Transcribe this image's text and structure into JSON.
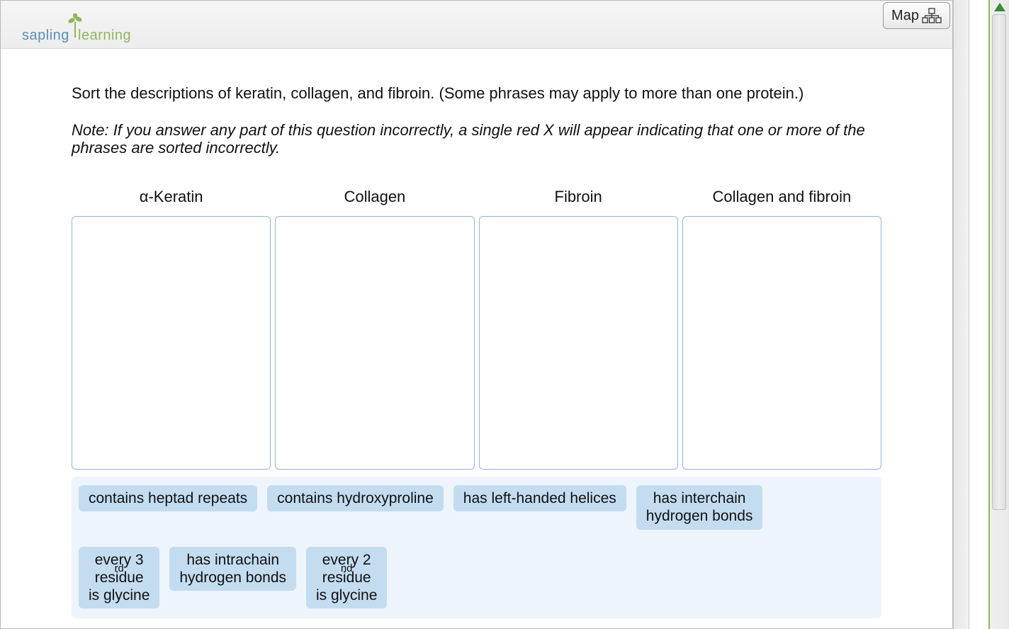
{
  "header": {
    "logo_part1": "sapling",
    "logo_part2": "learning",
    "map_button_label": "Map"
  },
  "question": {
    "prompt": "Sort the descriptions of keratin, collagen, and fibroin. (Some phrases may apply to more than one protein.)",
    "note": "Note: If you answer any part of this question incorrectly, a single red X will appear indicating that one or more of the phrases are sorted incorrectly."
  },
  "bins": [
    {
      "label_html": "α-Keratin"
    },
    {
      "label_html": "Collagen"
    },
    {
      "label_html": "Fibroin"
    },
    {
      "label_html": "Collagen and fibroin"
    }
  ],
  "chips": [
    {
      "html": "contains heptad repeats",
      "lines": 1
    },
    {
      "html": "contains hydroxyproline",
      "lines": 1
    },
    {
      "html": "has left-handed helices",
      "lines": 1
    },
    {
      "html": "has interchain<br>hydrogen bonds",
      "lines": 2
    },
    {
      "html": "every 3<sup>rd</sup> residue<br>is glycine",
      "lines": 2
    },
    {
      "html": "has intrachain<br>hydrogen bonds",
      "lines": 2
    },
    {
      "html": "every 2<sup>nd</sup> residue<br>is glycine",
      "lines": 2
    }
  ],
  "colors": {
    "bin_border": "#8fb8e0",
    "chip_bg": "#c3dcf0",
    "chips_area_bg": "#edf4fb",
    "logo_blue": "#5a8fb5",
    "logo_green": "#8fb55a",
    "scroll_accent": "#3a8a3a"
  }
}
